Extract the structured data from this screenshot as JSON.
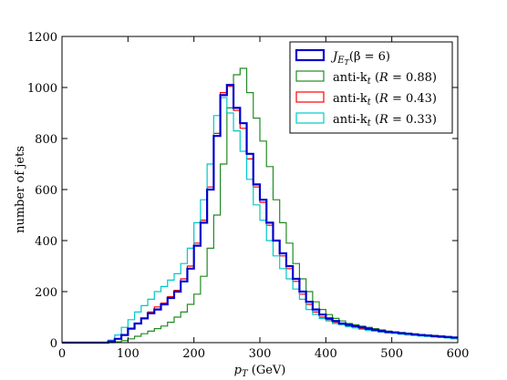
{
  "chart_data": {
    "type": "line",
    "title": "",
    "xlabel": "p_T (GeV)",
    "ylabel": "number of jets",
    "xlim": [
      0,
      600
    ],
    "ylim": [
      0,
      1200
    ],
    "xticks": [
      "0",
      "100",
      "200",
      "300",
      "400",
      "500",
      "600"
    ],
    "yticks": [
      "0",
      "200",
      "400",
      "600",
      "800",
      "1000",
      "1200"
    ],
    "grid": false,
    "legend_position": "top-right",
    "bin_width": 10,
    "x": [
      0,
      10,
      20,
      30,
      40,
      50,
      60,
      70,
      80,
      90,
      100,
      110,
      120,
      130,
      140,
      150,
      160,
      170,
      180,
      190,
      200,
      210,
      220,
      230,
      240,
      250,
      260,
      270,
      280,
      290,
      300,
      310,
      320,
      330,
      340,
      350,
      360,
      370,
      380,
      390,
      400,
      410,
      420,
      430,
      440,
      450,
      460,
      470,
      480,
      490,
      500,
      510,
      520,
      530,
      540,
      550,
      560,
      570,
      580,
      590
    ],
    "series": [
      {
        "name": "J_{E_T} (β = 6)",
        "label_main": "J",
        "label_sub": "E",
        "label_subsub": "T",
        "label_rest": "(β = 6)",
        "color": "#0000cc",
        "stroke_width": 2.2,
        "values": [
          0,
          0,
          0,
          0,
          0,
          0,
          0,
          5,
          15,
          30,
          55,
          75,
          95,
          115,
          130,
          150,
          175,
          200,
          240,
          290,
          380,
          470,
          600,
          810,
          970,
          1010,
          920,
          860,
          740,
          620,
          560,
          470,
          400,
          350,
          300,
          250,
          200,
          160,
          130,
          110,
          95,
          85,
          75,
          70,
          65,
          60,
          55,
          50,
          45,
          42,
          40,
          37,
          35,
          32,
          30,
          28,
          26,
          24,
          22,
          20
        ]
      },
      {
        "name": "anti-k_t (R = 0.88)",
        "label_main": "anti-k",
        "label_sub": "t",
        "label_rest": "(R = 0.88)",
        "color": "#228b22",
        "stroke_width": 1.2,
        "values": [
          0,
          0,
          0,
          0,
          0,
          0,
          0,
          0,
          3,
          8,
          15,
          25,
          35,
          45,
          55,
          65,
          80,
          100,
          120,
          150,
          190,
          260,
          370,
          500,
          700,
          920,
          1050,
          1075,
          980,
          880,
          790,
          690,
          560,
          470,
          390,
          310,
          250,
          200,
          160,
          130,
          110,
          95,
          85,
          75,
          70,
          65,
          60,
          55,
          50,
          45,
          42,
          40,
          37,
          35,
          32,
          30,
          28,
          26,
          24,
          20
        ]
      },
      {
        "name": "anti-k_t (R = 0.43)",
        "label_main": "anti-k",
        "label_sub": "t",
        "label_rest": "(R = 0.43)",
        "color": "#ff0000",
        "stroke_width": 1.2,
        "values": [
          0,
          0,
          0,
          0,
          0,
          0,
          0,
          5,
          15,
          30,
          55,
          75,
          95,
          120,
          140,
          155,
          180,
          205,
          250,
          300,
          390,
          480,
          610,
          820,
          980,
          1005,
          910,
          840,
          720,
          610,
          550,
          460,
          400,
          340,
          290,
          240,
          190,
          150,
          120,
          100,
          90,
          80,
          70,
          65,
          60,
          55,
          50,
          47,
          44,
          40,
          38,
          36,
          33,
          30,
          28,
          26,
          24,
          22,
          20,
          18
        ]
      },
      {
        "name": "anti-k_t (R = 0.33)",
        "label_main": "anti-k",
        "label_sub": "t",
        "label_rest": "(R = 0.33)",
        "color": "#00c8c8",
        "stroke_width": 1.2,
        "values": [
          0,
          0,
          0,
          0,
          0,
          0,
          0,
          10,
          30,
          60,
          90,
          120,
          145,
          170,
          200,
          220,
          245,
          270,
          310,
          370,
          470,
          560,
          700,
          890,
          960,
          900,
          830,
          750,
          640,
          540,
          480,
          400,
          340,
          290,
          250,
          210,
          170,
          130,
          110,
          95,
          85,
          75,
          70,
          62,
          58,
          52,
          48,
          45,
          42,
          38,
          36,
          33,
          30,
          28,
          26,
          24,
          22,
          20,
          18,
          15
        ]
      }
    ]
  }
}
